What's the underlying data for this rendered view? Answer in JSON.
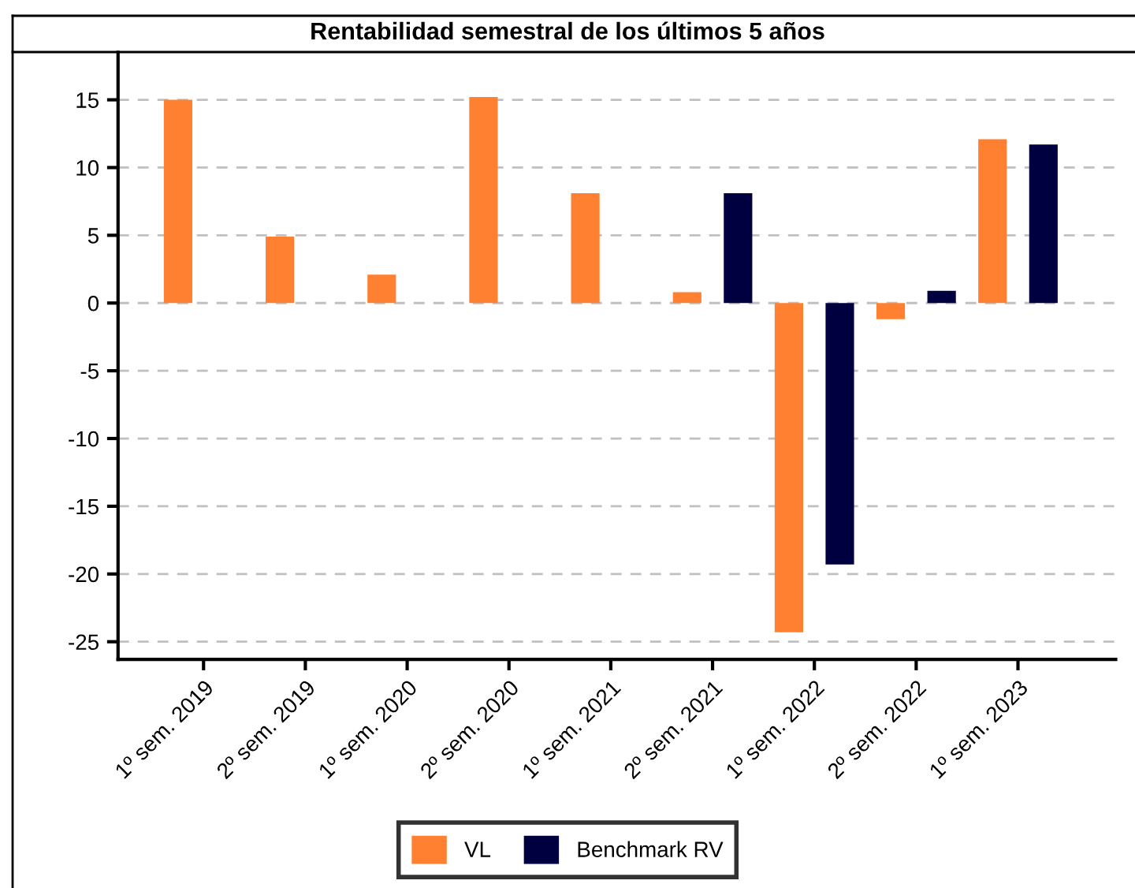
{
  "chart_data": {
    "type": "bar",
    "title": "Rentabilidad semestral de los últimos 5 años",
    "categories": [
      "1º sem. 2019",
      "2º sem. 2019",
      "1º sem. 2020",
      "2º sem. 2020",
      "1º sem. 2021",
      "2º sem. 2021",
      "1º sem. 2022",
      "2º sem. 2022",
      "1º sem. 2023"
    ],
    "series": [
      {
        "name": "VL",
        "color": "#ff8030",
        "values": [
          15.0,
          4.9,
          2.1,
          15.2,
          8.1,
          0.8,
          -24.3,
          -1.2,
          12.1
        ]
      },
      {
        "name": "Benchmark RV",
        "color": "#000040",
        "values": [
          null,
          null,
          null,
          null,
          null,
          8.1,
          -19.3,
          0.9,
          11.7
        ]
      }
    ],
    "ylim": [
      -26.3,
      18.5
    ],
    "yticks": [
      -25,
      -20,
      -15,
      -10,
      -5,
      0,
      5,
      10,
      15
    ],
    "grid": "y",
    "legend": "bottom"
  }
}
